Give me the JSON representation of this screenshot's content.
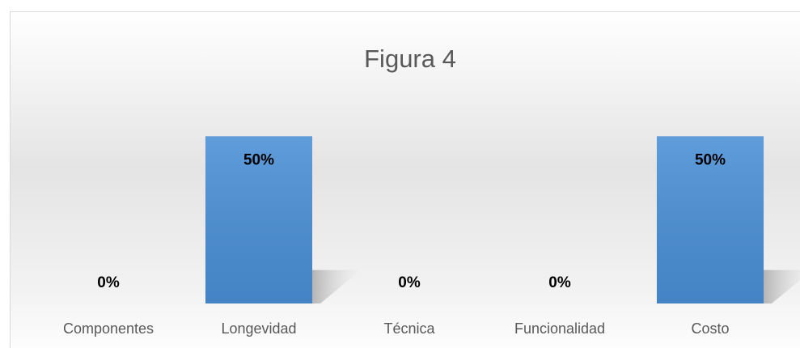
{
  "chart_data": {
    "type": "bar",
    "title": "Figura 4",
    "categories": [
      "Componentes",
      "Longevidad",
      "Técnica",
      "Funcionalidad",
      "Costo"
    ],
    "values": [
      0,
      50,
      0,
      0,
      50
    ],
    "value_labels": [
      "0%",
      "50%",
      "0%",
      "0%",
      "50%"
    ],
    "color": "#4a8fd6",
    "ylim": [
      0,
      60
    ]
  }
}
